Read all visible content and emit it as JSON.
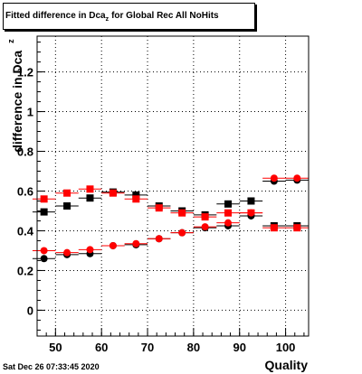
{
  "title": {
    "prefix": "Fitted difference in Dca",
    "subscript": "z",
    "suffix": "for Global Rec All NoHits"
  },
  "ylabel": {
    "main": "difference in Dca",
    "subscript": "z"
  },
  "xlabel": "Quality",
  "datestamp": "Sat Dec 26 07:33:45 2020",
  "colors": {
    "black_series": "#000000",
    "red_series": "#ff0000",
    "grid": "#000000"
  },
  "chart_data": {
    "type": "scatter",
    "xlim": [
      46,
      105
    ],
    "ylim": [
      -0.13,
      1.38
    ],
    "grid": true,
    "x_ticks": [
      50,
      60,
      70,
      80,
      90,
      100
    ],
    "x_tick_labels": [
      "50",
      "60",
      "70",
      "80",
      "90",
      "100"
    ],
    "y_ticks": [
      0,
      0.2,
      0.4,
      0.6,
      0.8,
      1.0,
      1.2
    ],
    "y_tick_labels": [
      "0",
      "0.2",
      "0.4",
      "0.6",
      "0.8",
      "1",
      "1.2"
    ],
    "bin_halfwidth": 2.5,
    "series": [
      {
        "color": "black",
        "marker": "square",
        "x": [
          47.5,
          52.5,
          57.5,
          62.5,
          67.5,
          72.5,
          77.5,
          82.5,
          87.5,
          92.5,
          97.5,
          102.5
        ],
        "y": [
          0.495,
          0.525,
          0.565,
          0.595,
          0.58,
          0.525,
          0.5,
          0.48,
          0.535,
          0.55,
          0.425,
          0.425
        ]
      },
      {
        "color": "red",
        "marker": "square",
        "x": [
          47.5,
          52.5,
          57.5,
          62.5,
          67.5,
          72.5,
          77.5,
          82.5,
          87.5,
          92.5,
          97.5,
          102.5
        ],
        "y": [
          0.56,
          0.59,
          0.61,
          0.59,
          0.56,
          0.515,
          0.49,
          0.47,
          0.49,
          0.49,
          0.415,
          0.415
        ]
      },
      {
        "color": "black",
        "marker": "circle",
        "x": [
          47.5,
          52.5,
          57.5,
          62.5,
          67.5,
          72.5,
          77.5,
          82.5,
          87.5,
          92.5,
          97.5,
          102.5
        ],
        "y": [
          0.26,
          0.28,
          0.285,
          0.325,
          0.33,
          0.36,
          0.39,
          0.415,
          0.425,
          0.475,
          0.65,
          0.655
        ]
      },
      {
        "color": "red",
        "marker": "circle",
        "x": [
          47.5,
          52.5,
          57.5,
          62.5,
          67.5,
          72.5,
          77.5,
          82.5,
          87.5,
          92.5,
          97.5,
          102.5
        ],
        "y": [
          0.3,
          0.29,
          0.305,
          0.325,
          0.335,
          0.36,
          0.39,
          0.42,
          0.44,
          0.49,
          0.665,
          0.665
        ]
      }
    ]
  }
}
